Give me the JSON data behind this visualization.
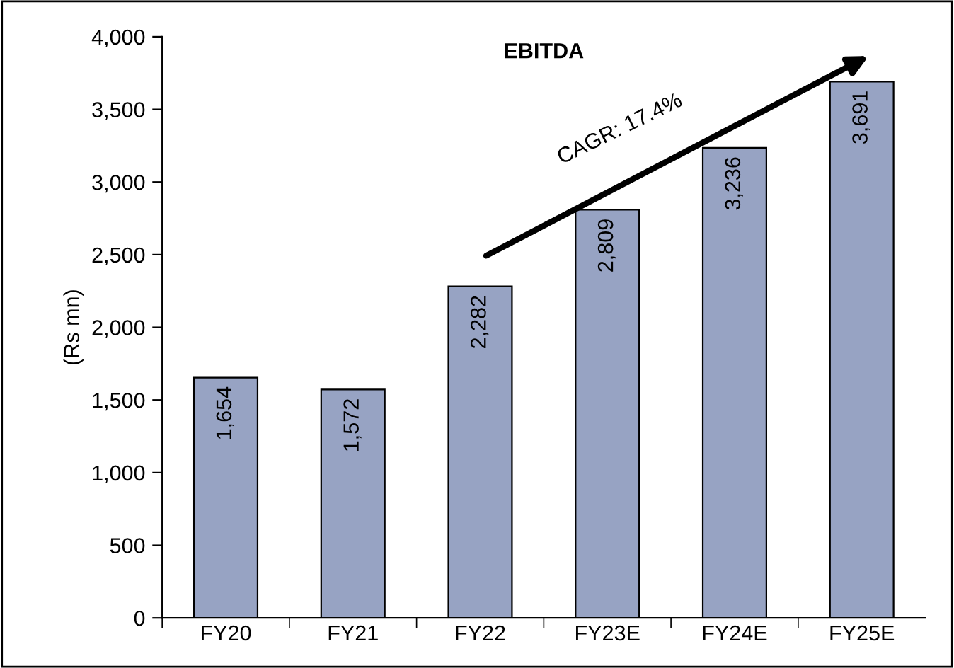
{
  "chart_data": {
    "type": "bar",
    "title": "EBITDA",
    "ylabel": "(Rs mn)",
    "categories": [
      "FY20",
      "FY21",
      "FY22",
      "FY23E",
      "FY24E",
      "FY25E"
    ],
    "values": [
      1654,
      1572,
      2282,
      2809,
      3236,
      3691
    ],
    "value_labels": [
      "1,654",
      "1,572",
      "2,282",
      "2,809",
      "3,236",
      "3,691"
    ],
    "color": "#97a3c3",
    "ylim": [
      0,
      4000
    ],
    "yticks": [
      0,
      500,
      {
        "value": 1000,
        "label": "1,000"
      },
      {
        "value": 1500,
        "label": "1,500"
      },
      {
        "value": 2000,
        "label": "2,000"
      },
      {
        "value": 2500,
        "label": "2,500"
      },
      {
        "value": 3000,
        "label": "3,000"
      },
      {
        "value": 3500,
        "label": "3,500"
      },
      {
        "value": 4000,
        "label": "4,000"
      }
    ],
    "annotations": [
      "CAGR: 17.4%"
    ],
    "grid": false,
    "legend": false
  }
}
